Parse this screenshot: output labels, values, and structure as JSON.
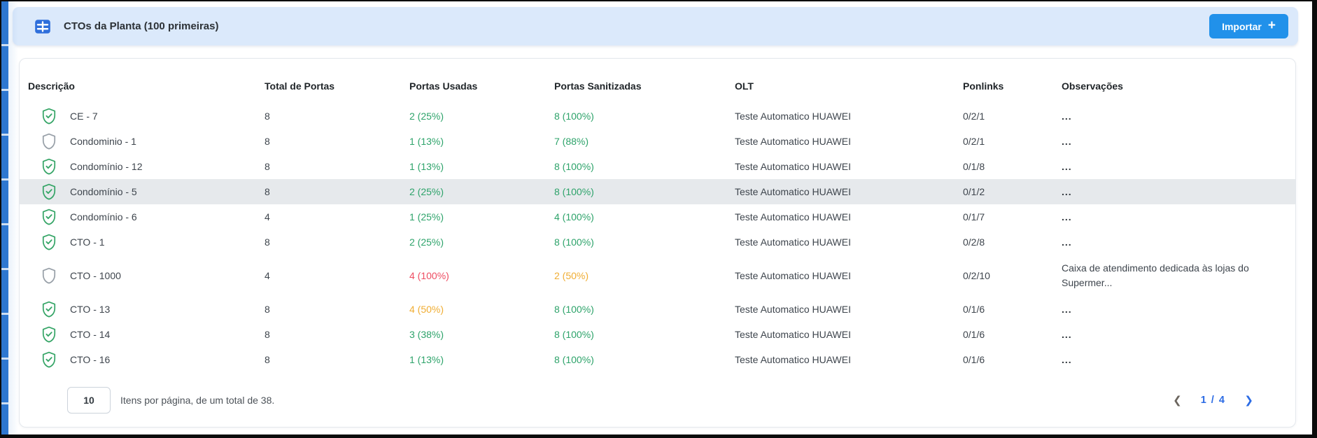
{
  "panel": {
    "title": "CTOs da Planta (100 primeiras)",
    "table_icon": "table-grid",
    "import_button": {
      "label": "Importar",
      "icon": "+"
    }
  },
  "table": {
    "columns": [
      "Descrição",
      "Total de Portas",
      "Portas Usadas",
      "Portas Sanitizadas",
      "OLT",
      "Ponlinks",
      "Observações"
    ],
    "rows": [
      {
        "status": "verified",
        "descricao": "CE - 7",
        "total": "8",
        "usadas": "2 (25%)",
        "usadas_color": "green",
        "sanitizadas": "8 (100%)",
        "sanitizadas_color": "green",
        "olt": "Teste Automatico HUAWEI",
        "ponlinks": "0/2/1",
        "observacoes": "...",
        "highlighted": false
      },
      {
        "status": "unverified",
        "descricao": "Condominio - 1",
        "total": "8",
        "usadas": "1 (13%)",
        "usadas_color": "green",
        "sanitizadas": "7 (88%)",
        "sanitizadas_color": "green",
        "olt": "Teste Automatico HUAWEI",
        "ponlinks": "0/2/1",
        "observacoes": "...",
        "highlighted": false
      },
      {
        "status": "verified",
        "descricao": "Condomínio - 12",
        "total": "8",
        "usadas": "1 (13%)",
        "usadas_color": "green",
        "sanitizadas": "8 (100%)",
        "sanitizadas_color": "green",
        "olt": "Teste Automatico HUAWEI",
        "ponlinks": "0/1/8",
        "observacoes": "...",
        "highlighted": false
      },
      {
        "status": "verified",
        "descricao": "Condomínio - 5",
        "total": "8",
        "usadas": "2 (25%)",
        "usadas_color": "green",
        "sanitizadas": "8 (100%)",
        "sanitizadas_color": "green",
        "olt": "Teste Automatico HUAWEI",
        "ponlinks": "0/1/2",
        "observacoes": "...",
        "highlighted": true
      },
      {
        "status": "verified",
        "descricao": "Condomínio - 6",
        "total": "4",
        "usadas": "1 (25%)",
        "usadas_color": "green",
        "sanitizadas": "4 (100%)",
        "sanitizadas_color": "green",
        "olt": "Teste Automatico HUAWEI",
        "ponlinks": "0/1/7",
        "observacoes": "...",
        "highlighted": false
      },
      {
        "status": "verified",
        "descricao": "CTO - 1",
        "total": "8",
        "usadas": "2 (25%)",
        "usadas_color": "green",
        "sanitizadas": "8 (100%)",
        "sanitizadas_color": "green",
        "olt": "Teste Automatico HUAWEI",
        "ponlinks": "0/2/8",
        "observacoes": "...",
        "highlighted": false
      },
      {
        "status": "unverified",
        "descricao": "CTO - 1000",
        "total": "4",
        "usadas": "4 (100%)",
        "usadas_color": "red",
        "sanitizadas": "2 (50%)",
        "sanitizadas_color": "yellow",
        "olt": "Teste Automatico HUAWEI",
        "ponlinks": "0/2/10",
        "observacoes": "Caixa de atendimento dedicada às lojas do Supermer...",
        "highlighted": false
      },
      {
        "status": "verified",
        "descricao": "CTO - 13",
        "total": "8",
        "usadas": "4 (50%)",
        "usadas_color": "yellow",
        "sanitizadas": "8 (100%)",
        "sanitizadas_color": "green",
        "olt": "Teste Automatico HUAWEI",
        "ponlinks": "0/1/6",
        "observacoes": "...",
        "highlighted": false
      },
      {
        "status": "verified",
        "descricao": "CTO - 14",
        "total": "8",
        "usadas": "3 (38%)",
        "usadas_color": "green",
        "sanitizadas": "8 (100%)",
        "sanitizadas_color": "green",
        "olt": "Teste Automatico HUAWEI",
        "ponlinks": "0/1/6",
        "observacoes": "...",
        "highlighted": false
      },
      {
        "status": "verified",
        "descricao": "CTO - 16",
        "total": "8",
        "usadas": "1 (13%)",
        "usadas_color": "green",
        "sanitizadas": "8 (100%)",
        "sanitizadas_color": "green",
        "olt": "Teste Automatico HUAWEI",
        "ponlinks": "0/1/6",
        "observacoes": "...",
        "highlighted": false
      }
    ]
  },
  "footer": {
    "items_per_page": "10",
    "summary": "Itens por página, de um total de 38.",
    "pagination": {
      "prev_icon": "❮",
      "current": "1 / 4",
      "next_icon": "❯"
    }
  },
  "colors": {
    "accent_blue": "#2191ea",
    "panel_header_bg": "#dbe9fb",
    "table_icon_blue": "#2f6fdb",
    "success_green": "#2da36a",
    "warning_yellow": "#f0ad33",
    "danger_red": "#ee4d62",
    "pagination_blue": "#2b6be4",
    "row_highlight": "#e6e9ec",
    "left_strip_blue": "#2e77d0"
  }
}
